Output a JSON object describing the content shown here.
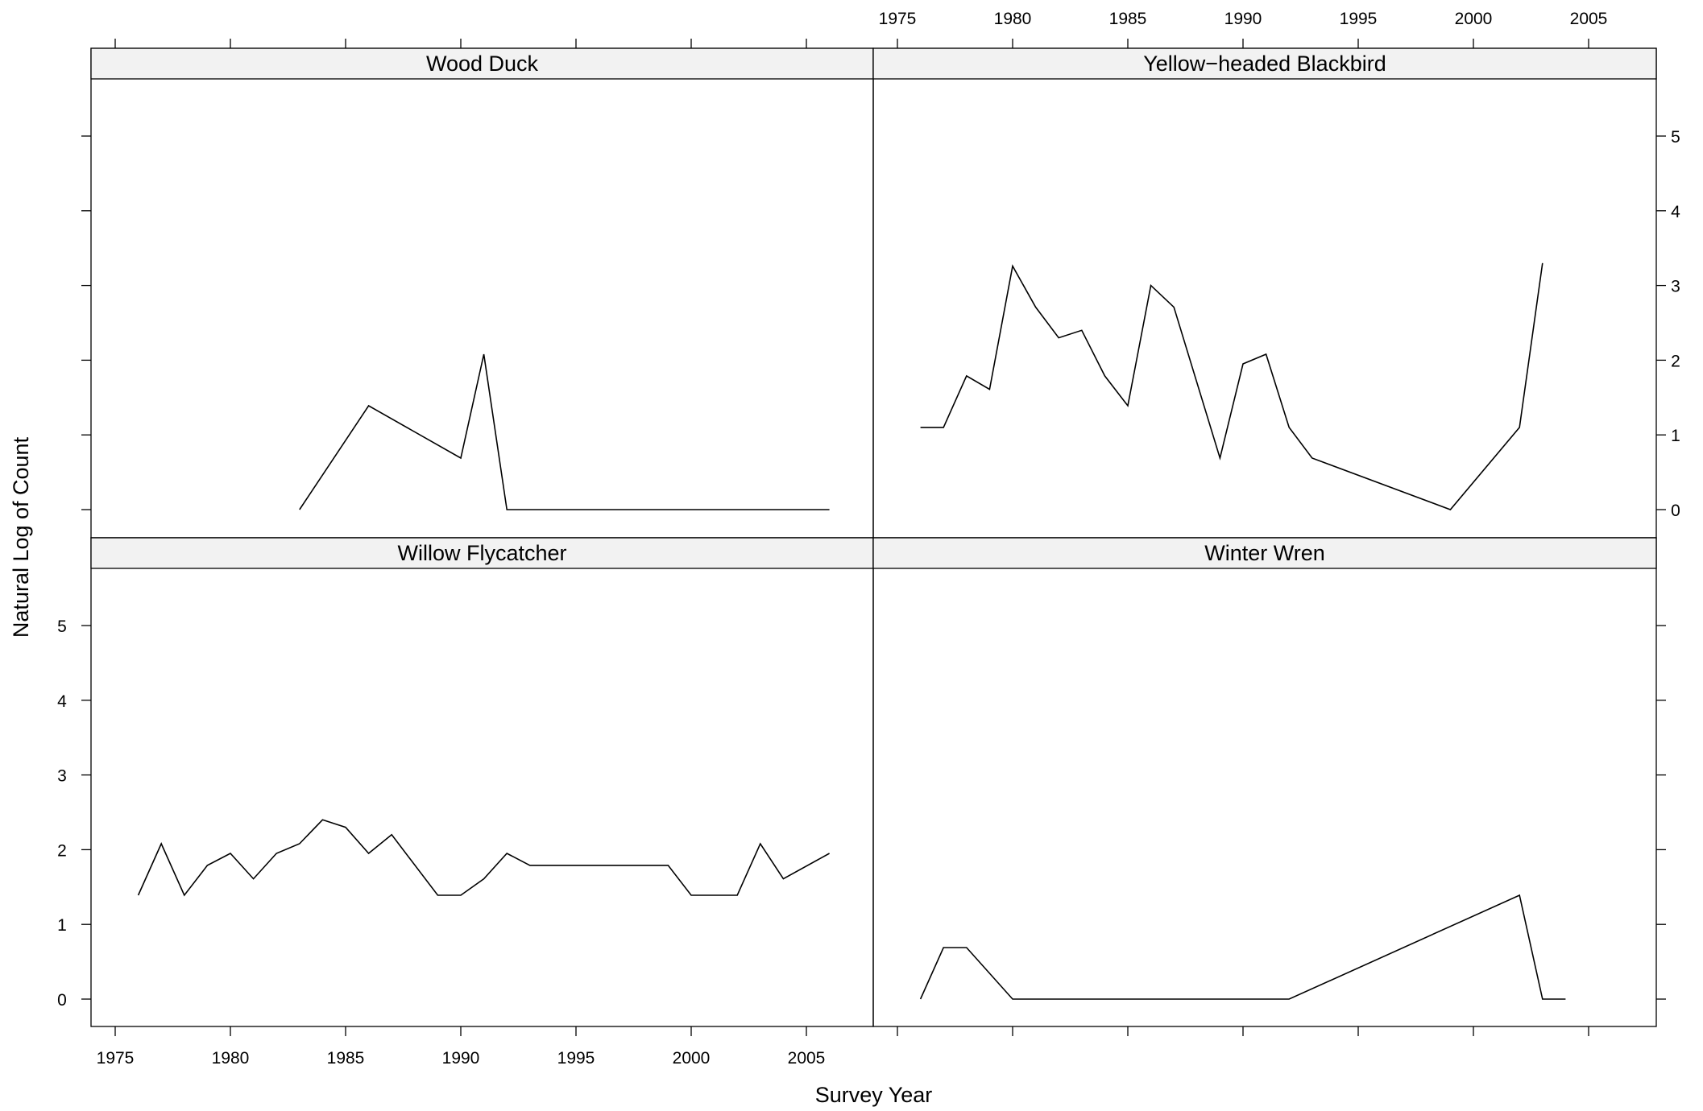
{
  "chart_data": {
    "type": "line",
    "layout": "2x2 trellis panels",
    "xlabel": "Survey Year",
    "ylabel": "Natural Log of Count",
    "xlim": [
      1974,
      2008
    ],
    "ylim": [
      -0.35,
      5.8
    ],
    "xticks": [
      1975,
      1980,
      1985,
      1990,
      1995,
      2000,
      2005
    ],
    "yticks": [
      0,
      1,
      2,
      3,
      4,
      5
    ],
    "grid": false,
    "panels": [
      {
        "name": "Wood Duck",
        "x": [
          1983,
          1986,
          1990,
          1991,
          1992,
          2006
        ],
        "y": [
          0.0,
          1.39,
          0.69,
          2.08,
          0.0,
          0.0
        ]
      },
      {
        "name": "Yellow−headed Blackbird",
        "x": [
          1976,
          1977,
          1978,
          1979,
          1980,
          1981,
          1982,
          1983,
          1984,
          1985,
          1986,
          1987,
          1989,
          1990,
          1991,
          1992,
          1993,
          1999,
          2002,
          2003
        ],
        "y": [
          1.1,
          1.1,
          1.79,
          1.61,
          3.26,
          2.71,
          2.3,
          2.4,
          1.79,
          1.39,
          3.0,
          2.71,
          0.69,
          1.95,
          2.08,
          1.1,
          0.69,
          0.0,
          1.1,
          3.3
        ]
      },
      {
        "name": "Willow Flycatcher",
        "x": [
          1976,
          1977,
          1978,
          1979,
          1980,
          1981,
          1982,
          1983,
          1984,
          1985,
          1986,
          1987,
          1989,
          1990,
          1991,
          1992,
          1993,
          1999,
          2000,
          2002,
          2003,
          2004,
          2006
        ],
        "y": [
          1.39,
          2.08,
          1.39,
          1.79,
          1.95,
          1.61,
          1.95,
          2.08,
          2.4,
          2.3,
          1.95,
          2.2,
          1.39,
          1.39,
          1.61,
          1.95,
          1.79,
          1.79,
          1.39,
          1.39,
          2.08,
          1.61,
          1.95
        ]
      },
      {
        "name": "Winter Wren",
        "x": [
          1976,
          1977,
          1978,
          1980,
          1992,
          2002,
          2003,
          2004
        ],
        "y": [
          0.0,
          0.69,
          0.69,
          0.0,
          0.0,
          1.39,
          0.0,
          0.0
        ]
      }
    ]
  }
}
